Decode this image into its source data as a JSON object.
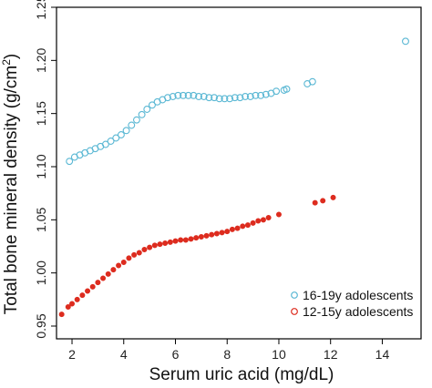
{
  "chart_data": {
    "type": "scatter",
    "xlabel": "Serum uric acid (mg/dL)",
    "ylabel_prefix": "Total bone mineral density (g/cm",
    "ylabel_sup": "2",
    "ylabel_suffix": ")",
    "xlim": [
      1.4,
      15.5
    ],
    "ylim": [
      0.938,
      1.25
    ],
    "x_ticks": [
      2,
      4,
      6,
      8,
      10,
      12,
      14
    ],
    "x_tick_labels": [
      "2",
      "4",
      "6",
      "8",
      "10",
      "12",
      "14"
    ],
    "y_ticks": [
      0.95,
      1.0,
      1.05,
      1.1,
      1.15,
      1.2,
      1.25
    ],
    "y_tick_labels": [
      "0.95",
      "1.00",
      "1.05",
      "1.10",
      "1.15",
      "1.20",
      "1.25"
    ],
    "grid": false,
    "legend_position": "bottom-right",
    "series": [
      {
        "name": "16-19y adolescents",
        "marker": "open-circle",
        "color": "#5bb8d4",
        "points": [
          [
            1.9,
            1.105
          ],
          [
            2.1,
            1.109
          ],
          [
            2.3,
            1.111
          ],
          [
            2.5,
            1.113
          ],
          [
            2.7,
            1.115
          ],
          [
            2.9,
            1.117
          ],
          [
            3.1,
            1.119
          ],
          [
            3.3,
            1.121
          ],
          [
            3.5,
            1.124
          ],
          [
            3.7,
            1.127
          ],
          [
            3.9,
            1.13
          ],
          [
            4.1,
            1.134
          ],
          [
            4.3,
            1.139
          ],
          [
            4.5,
            1.144
          ],
          [
            4.7,
            1.149
          ],
          [
            4.9,
            1.154
          ],
          [
            5.1,
            1.158
          ],
          [
            5.3,
            1.161
          ],
          [
            5.5,
            1.163
          ],
          [
            5.7,
            1.165
          ],
          [
            5.9,
            1.166
          ],
          [
            6.1,
            1.167
          ],
          [
            6.3,
            1.167
          ],
          [
            6.5,
            1.167
          ],
          [
            6.7,
            1.167
          ],
          [
            6.9,
            1.166
          ],
          [
            7.1,
            1.166
          ],
          [
            7.3,
            1.165
          ],
          [
            7.5,
            1.165
          ],
          [
            7.7,
            1.164
          ],
          [
            7.9,
            1.164
          ],
          [
            8.1,
            1.164
          ],
          [
            8.3,
            1.165
          ],
          [
            8.5,
            1.165
          ],
          [
            8.7,
            1.166
          ],
          [
            8.9,
            1.166
          ],
          [
            9.1,
            1.167
          ],
          [
            9.3,
            1.167
          ],
          [
            9.5,
            1.168
          ],
          [
            9.7,
            1.169
          ],
          [
            9.9,
            1.171
          ],
          [
            10.2,
            1.172
          ],
          [
            10.3,
            1.173
          ],
          [
            11.1,
            1.178
          ],
          [
            11.3,
            1.18
          ],
          [
            14.9,
            1.218
          ]
        ]
      },
      {
        "name": "12-15y adolescents",
        "marker": "filled-circle",
        "color": "#dd2c1f",
        "points": [
          [
            1.6,
            0.961
          ],
          [
            1.85,
            0.968
          ],
          [
            2.0,
            0.971
          ],
          [
            2.2,
            0.975
          ],
          [
            2.4,
            0.979
          ],
          [
            2.6,
            0.983
          ],
          [
            2.8,
            0.987
          ],
          [
            3.0,
            0.991
          ],
          [
            3.2,
            0.995
          ],
          [
            3.4,
            0.999
          ],
          [
            3.6,
            1.003
          ],
          [
            3.8,
            1.007
          ],
          [
            4.0,
            1.01
          ],
          [
            4.2,
            1.014
          ],
          [
            4.4,
            1.017
          ],
          [
            4.6,
            1.019
          ],
          [
            4.8,
            1.022
          ],
          [
            5.0,
            1.024
          ],
          [
            5.2,
            1.026
          ],
          [
            5.4,
            1.027
          ],
          [
            5.6,
            1.028
          ],
          [
            5.8,
            1.029
          ],
          [
            6.0,
            1.03
          ],
          [
            6.2,
            1.031
          ],
          [
            6.4,
            1.031
          ],
          [
            6.6,
            1.032
          ],
          [
            6.8,
            1.033
          ],
          [
            7.0,
            1.034
          ],
          [
            7.2,
            1.035
          ],
          [
            7.4,
            1.036
          ],
          [
            7.6,
            1.037
          ],
          [
            7.8,
            1.038
          ],
          [
            8.0,
            1.039
          ],
          [
            8.2,
            1.041
          ],
          [
            8.4,
            1.042
          ],
          [
            8.6,
            1.044
          ],
          [
            8.8,
            1.045
          ],
          [
            9.0,
            1.047
          ],
          [
            9.2,
            1.049
          ],
          [
            9.4,
            1.05
          ],
          [
            9.6,
            1.052
          ],
          [
            10.0,
            1.055
          ],
          [
            11.4,
            1.066
          ],
          [
            11.7,
            1.068
          ],
          [
            12.1,
            1.071
          ]
        ]
      }
    ]
  }
}
